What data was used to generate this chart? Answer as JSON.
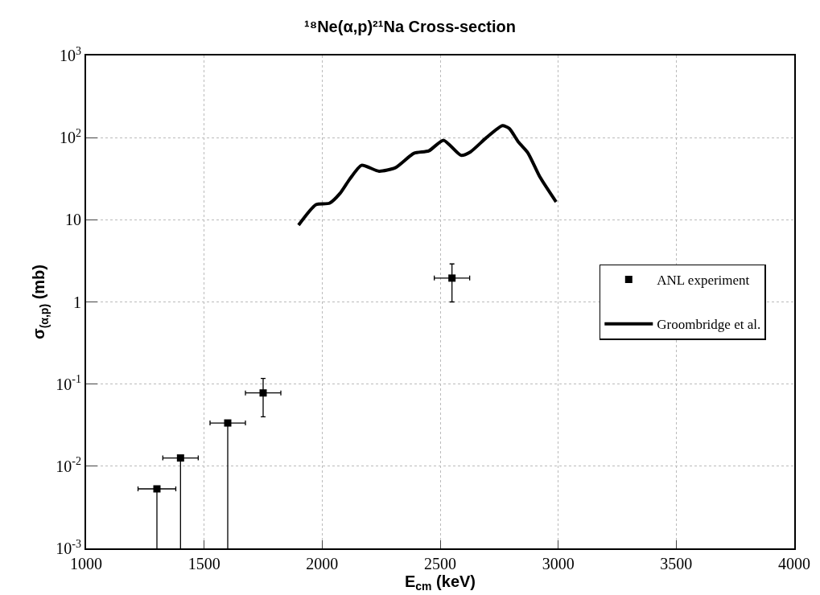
{
  "chart_data": {
    "type": "scatter",
    "title": "¹⁸Ne(α,p)²¹Na Cross-section",
    "xlabel": "E$_{cm}$ (keV)",
    "ylabel": "σ$_{(α,p)}$ (mb)",
    "log": "y",
    "grid": true,
    "legend": "right",
    "xlim": [
      1000,
      4000
    ],
    "xticks": [
      1000,
      1500,
      2000,
      2500,
      3000,
      3500,
      4000
    ],
    "ylim": [
      0.001,
      1000
    ],
    "yticks": [
      {
        "value": 0.001,
        "label": "10$^{-3}$"
      },
      {
        "value": 0.01,
        "label": "10$^{-2}$"
      },
      {
        "value": 0.1,
        "label": "10$^{-1}$"
      },
      1,
      10,
      {
        "value": 100,
        "label": "10$^{2}$"
      },
      {
        "value": 1000,
        "label": "10$^{3}$"
      }
    ],
    "series": [
      {
        "name": "ANL experiment",
        "type": "scatter",
        "marker": "square",
        "color": "#000000",
        "x": [
          1300,
          1400,
          1600,
          1750,
          2550
        ],
        "values": [
          0.0053,
          0.0126,
          0.0336,
          0.078,
          1.95
        ],
        "errors": [
          [
            0.001,
            0.0053
          ],
          [
            0.001,
            0.0126
          ],
          [
            0.001,
            0.0336
          ],
          [
            0.04,
            0.117
          ],
          [
            1.0,
            2.9
          ]
        ],
        "xerrors": [
          80,
          75,
          75,
          75,
          75
        ]
      },
      {
        "name": "Groombridge et al.",
        "type": "line",
        "line_style": "solid",
        "marker": "none",
        "color": "#000000",
        "x": [
          1900,
          1974,
          2031,
          2076,
          2116,
          2167,
          2241,
          2310,
          2389,
          2452,
          2514,
          2588,
          2628,
          2696,
          2764,
          2793,
          2832,
          2872,
          2923,
          2991
        ],
        "values": [
          8.6,
          15.3,
          15.9,
          21,
          31,
          46,
          39,
          43,
          64.6,
          69,
          93,
          61,
          67,
          100,
          140,
          129,
          88,
          65,
          33,
          16.5
        ]
      }
    ]
  }
}
